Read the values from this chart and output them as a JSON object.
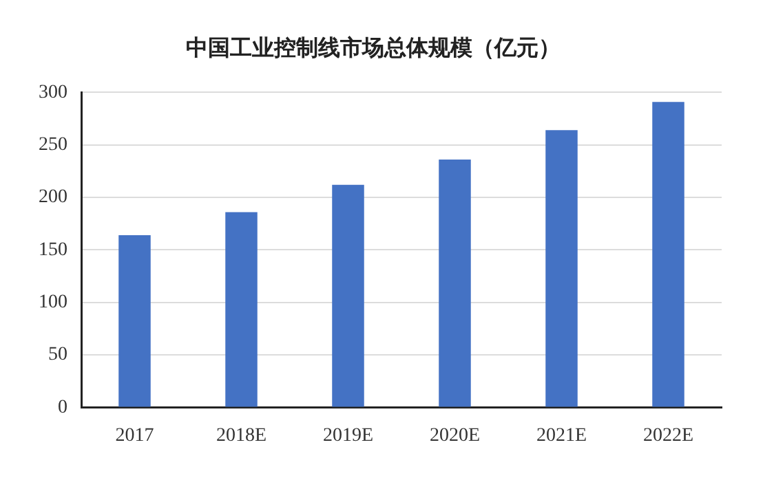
{
  "chart_data": {
    "type": "bar",
    "title": "中国工业控制线市场总体规模（亿元）",
    "categories": [
      "2017",
      "2018E",
      "2019E",
      "2020E",
      "2021E",
      "2022E"
    ],
    "values": [
      164,
      186,
      212,
      236,
      264,
      291
    ],
    "color": "#4472c4",
    "ylim": [
      0,
      300
    ],
    "yticks": [
      0,
      50,
      100,
      150,
      200,
      250,
      300
    ],
    "grid": "y",
    "legend": false
  }
}
